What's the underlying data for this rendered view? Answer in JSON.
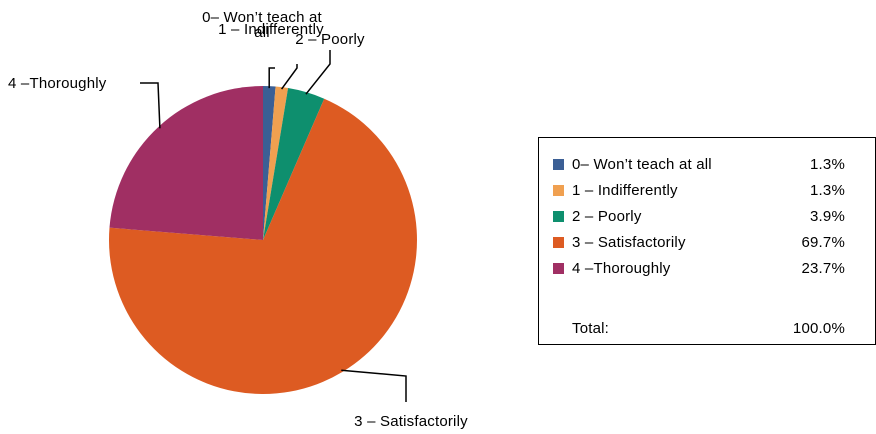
{
  "chart_data": {
    "type": "pie",
    "title": "",
    "categories": [
      "0– Won’t teach at all",
      "1 – Indifferently",
      "2 – Poorly",
      "3 – Satisfactorily",
      "4 –Thoroughly"
    ],
    "values": [
      1.3,
      1.3,
      3.9,
      69.7,
      23.7
    ],
    "value_labels": [
      "1.3%",
      "1.3%",
      "3.9%",
      "69.7%",
      "23.7%"
    ],
    "colors": [
      "#3b5f95",
      "#f0a050",
      "#0e8f6e",
      "#dd5b22",
      "#a02f63"
    ],
    "callout_labels": [
      [
        "0– Won’t teach at",
        "all"
      ],
      [
        "1 – Indifferently"
      ],
      [
        "2 – Poorly"
      ],
      [
        "3 – Satisfactorily"
      ],
      [
        "4 –Thoroughly"
      ]
    ],
    "legend": {
      "placement": "right",
      "total_label": "Total:",
      "total_value": "100.0%"
    }
  }
}
